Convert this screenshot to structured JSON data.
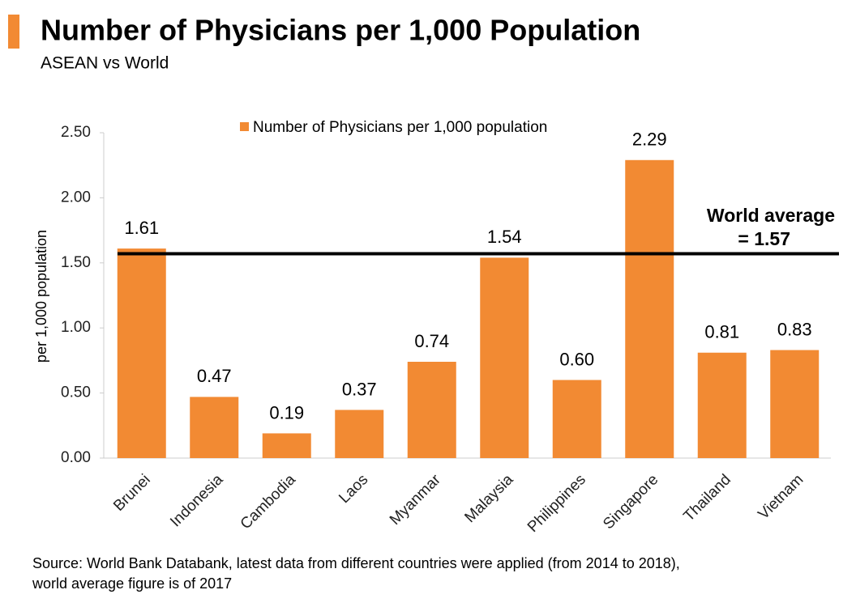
{
  "chart_data": {
    "type": "bar",
    "title": "Number of Physicians per 1,000 Population",
    "subtitle": "ASEAN vs World",
    "y_label": "per 1,000 population",
    "legend": "Number of Physicians per 1,000 population",
    "color": "#f28a33",
    "categories": [
      "Brunei",
      "Indonesia",
      "Cambodia",
      "Laos",
      "Myanmar",
      "Malaysia",
      "Philippines",
      "Singapore",
      "Thailand",
      "Vietnam"
    ],
    "values": [
      1.61,
      0.47,
      0.19,
      0.37,
      0.74,
      1.54,
      0.6,
      2.29,
      0.81,
      0.83
    ],
    "value_labels": [
      "1.61",
      "0.47",
      "0.19",
      "0.37",
      "0.74",
      "1.54",
      "0.60",
      "2.29",
      "0.81",
      "0.83"
    ],
    "ylim": [
      0,
      2.5
    ],
    "yticks": [
      {
        "value": 0,
        "label": "0.00"
      },
      {
        "value": 0.5,
        "label": "0.50"
      },
      {
        "value": 1,
        "label": "1.00"
      },
      {
        "value": 1.5,
        "label": "1.50"
      },
      {
        "value": 2,
        "label": "2.00"
      },
      {
        "value": 2.5,
        "label": "2.50"
      }
    ],
    "reference_line": {
      "value": 1.57,
      "label_lines": [
        "World average",
        "= 1.57"
      ]
    },
    "source_lines": [
      "Source: World Bank Databank, latest data from different countries were applied (from 2014 to 2018),",
      "world average figure is of 2017"
    ]
  }
}
